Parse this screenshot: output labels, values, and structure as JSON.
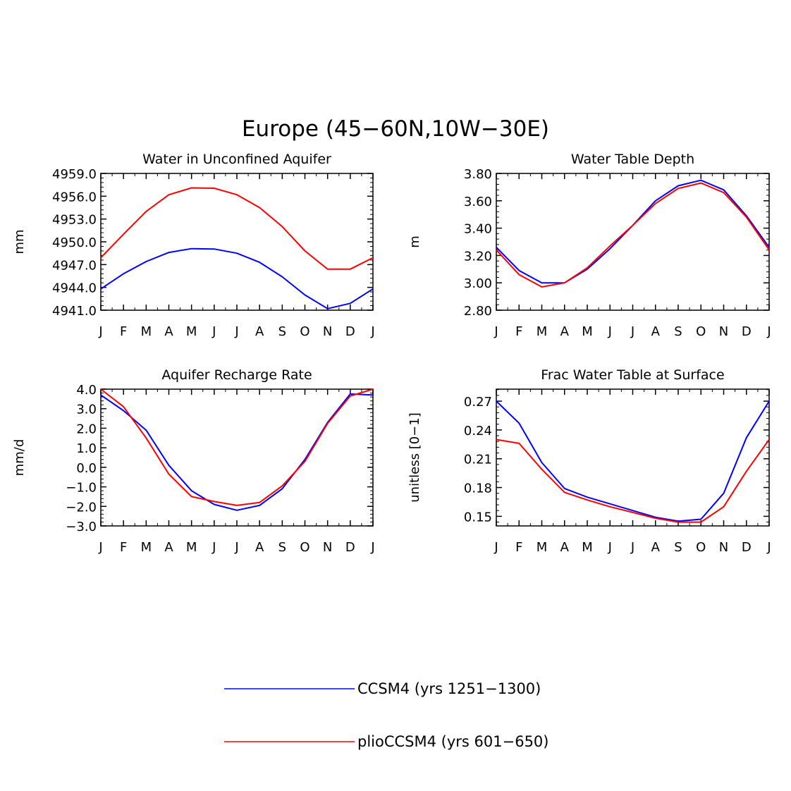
{
  "figure_title": "Europe (45−60N,10W−30E)",
  "chart_data": [
    {
      "type": "line",
      "title": "Water in Unconfined Aquifer",
      "xlabel": "",
      "ylabel": "mm",
      "categories": [
        "J",
        "F",
        "M",
        "A",
        "M",
        "J",
        "J",
        "A",
        "S",
        "O",
        "N",
        "D",
        "J"
      ],
      "ylim": [
        4941.0,
        4959.0
      ],
      "yticks": [
        "4941.0",
        "4944.0",
        "4947.0",
        "4950.0",
        "4953.0",
        "4956.0",
        "4959.0"
      ],
      "series": [
        {
          "name": "CCSM4 (yrs 1251−1300)",
          "color": "#0000ff",
          "values": [
            4943.8,
            4945.8,
            4947.4,
            4948.6,
            4949.1,
            4949.05,
            4948.5,
            4947.3,
            4945.4,
            4943.0,
            4941.2,
            4941.9,
            4943.8
          ]
        },
        {
          "name": "plioCCSM4 (yrs 601−650)",
          "color": "#ff0000",
          "values": [
            4947.9,
            4951.0,
            4954.0,
            4956.2,
            4957.1,
            4957.05,
            4956.2,
            4954.5,
            4952.0,
            4948.8,
            4946.4,
            4946.4,
            4947.9
          ]
        }
      ]
    },
    {
      "type": "line",
      "title": "Water Table Depth",
      "xlabel": "",
      "ylabel": "m",
      "categories": [
        "J",
        "F",
        "M",
        "A",
        "M",
        "J",
        "J",
        "A",
        "S",
        "O",
        "N",
        "D",
        "J"
      ],
      "ylim": [
        2.8,
        3.8
      ],
      "yticks": [
        "2.80",
        "3.00",
        "3.20",
        "3.40",
        "3.60",
        "3.80"
      ],
      "series": [
        {
          "name": "CCSM4 (yrs 1251−1300)",
          "color": "#0000ff",
          "values": [
            3.26,
            3.09,
            3.0,
            3.0,
            3.1,
            3.25,
            3.42,
            3.6,
            3.71,
            3.75,
            3.68,
            3.49,
            3.26
          ]
        },
        {
          "name": "plioCCSM4 (yrs 601−650)",
          "color": "#ff0000",
          "values": [
            3.24,
            3.06,
            2.97,
            3.0,
            3.11,
            3.27,
            3.42,
            3.58,
            3.69,
            3.73,
            3.66,
            3.48,
            3.24
          ]
        }
      ]
    },
    {
      "type": "line",
      "title": "Aquifer Recharge Rate",
      "xlabel": "",
      "ylabel": "mm/d",
      "categories": [
        "J",
        "F",
        "M",
        "A",
        "M",
        "J",
        "J",
        "A",
        "S",
        "O",
        "N",
        "D",
        "J"
      ],
      "ylim": [
        -3.0,
        4.0
      ],
      "yticks": [
        "−3.0",
        "−2.0",
        "−1.0",
        "0.0",
        "1.0",
        "2.0",
        "3.0",
        "4.0"
      ],
      "series": [
        {
          "name": "CCSM4 (yrs 1251−1300)",
          "color": "#0000ff",
          "values": [
            3.7,
            2.9,
            1.9,
            0.1,
            -1.2,
            -1.9,
            -2.2,
            -1.95,
            -1.1,
            0.4,
            2.3,
            3.75,
            3.7
          ]
        },
        {
          "name": "plioCCSM4 (yrs 601−650)",
          "color": "#ff0000",
          "values": [
            4.0,
            3.1,
            1.5,
            -0.35,
            -1.5,
            -1.75,
            -1.95,
            -1.8,
            -0.95,
            0.3,
            2.25,
            3.65,
            4.0
          ]
        }
      ]
    },
    {
      "type": "line",
      "title": "Frac Water Table at Surface",
      "xlabel": "",
      "ylabel": "unitless [0−1]",
      "categories": [
        "J",
        "F",
        "M",
        "A",
        "M",
        "J",
        "J",
        "A",
        "S",
        "O",
        "N",
        "D",
        "J"
      ],
      "ylim": [
        0.14,
        0.2825
      ],
      "yticks": [
        "0.15",
        "0.18",
        "0.21",
        "0.24",
        "0.27"
      ],
      "ytick_values": [
        0.15,
        0.18,
        0.21,
        0.24,
        0.27
      ],
      "series": [
        {
          "name": "CCSM4 (yrs 1251−1300)",
          "color": "#0000ff",
          "values": [
            0.27,
            0.247,
            0.206,
            0.179,
            0.17,
            0.163,
            0.156,
            0.149,
            0.145,
            0.147,
            0.174,
            0.232,
            0.27
          ]
        },
        {
          "name": "plioCCSM4 (yrs 601−650)",
          "color": "#ff0000",
          "values": [
            0.23,
            0.226,
            0.199,
            0.175,
            0.167,
            0.16,
            0.154,
            0.148,
            0.144,
            0.144,
            0.16,
            0.197,
            0.23
          ]
        }
      ]
    }
  ],
  "legend": [
    {
      "label": "CCSM4 (yrs 1251−1300)",
      "color": "#0000ff"
    },
    {
      "label": "plioCCSM4 (yrs 601−650)",
      "color": "#ff0000"
    }
  ]
}
